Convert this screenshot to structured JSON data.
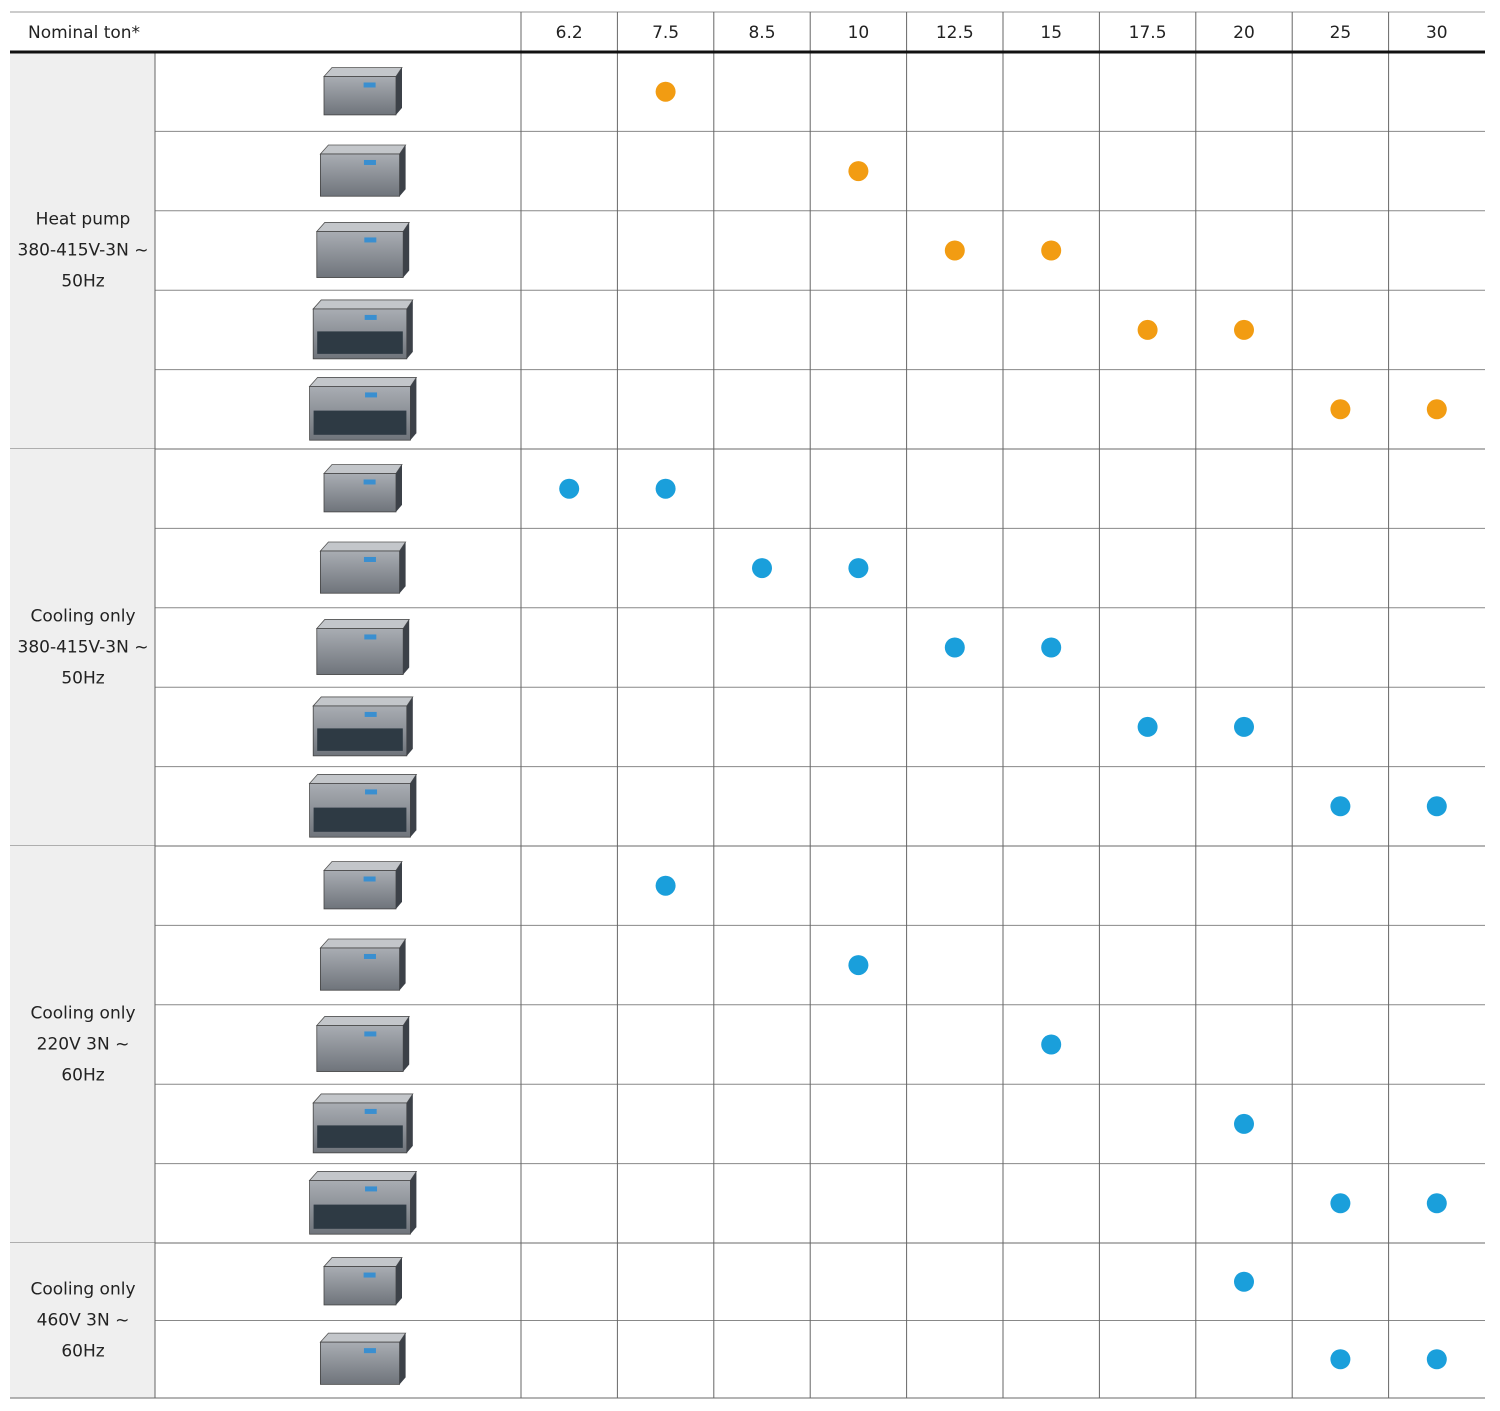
{
  "header": {
    "label": "Nominal ton*",
    "columns": [
      6.2,
      7.5,
      8.5,
      10,
      12.5,
      15,
      17.5,
      20,
      25,
      30
    ]
  },
  "groups": [
    {
      "label_lines": [
        "Heat pump",
        "380-415V-3N ~",
        "50Hz"
      ],
      "dot_color": "#f29c12",
      "rows": [
        [
          false,
          true,
          false,
          false,
          false,
          false,
          false,
          false,
          false,
          false
        ],
        [
          false,
          false,
          false,
          true,
          false,
          false,
          false,
          false,
          false,
          false
        ],
        [
          false,
          false,
          false,
          false,
          true,
          true,
          false,
          false,
          false,
          false
        ],
        [
          false,
          false,
          false,
          false,
          false,
          false,
          true,
          true,
          false,
          false
        ],
        [
          false,
          false,
          false,
          false,
          false,
          false,
          false,
          false,
          true,
          true
        ]
      ]
    },
    {
      "label_lines": [
        "Cooling only",
        "380-415V-3N ~",
        "50Hz"
      ],
      "dot_color": "#1a9fdb",
      "rows": [
        [
          true,
          true,
          false,
          false,
          false,
          false,
          false,
          false,
          false,
          false
        ],
        [
          false,
          false,
          true,
          true,
          false,
          false,
          false,
          false,
          false,
          false
        ],
        [
          false,
          false,
          false,
          false,
          true,
          true,
          false,
          false,
          false,
          false
        ],
        [
          false,
          false,
          false,
          false,
          false,
          false,
          true,
          true,
          false,
          false
        ],
        [
          false,
          false,
          false,
          false,
          false,
          false,
          false,
          false,
          true,
          true
        ]
      ]
    },
    {
      "label_lines": [
        "Cooling only",
        "220V 3N ~",
        "60Hz"
      ],
      "dot_color": "#1a9fdb",
      "rows": [
        [
          false,
          true,
          false,
          false,
          false,
          false,
          false,
          false,
          false,
          false
        ],
        [
          false,
          false,
          false,
          true,
          false,
          false,
          false,
          false,
          false,
          false
        ],
        [
          false,
          false,
          false,
          false,
          false,
          true,
          false,
          false,
          false,
          false
        ],
        [
          false,
          false,
          false,
          false,
          false,
          false,
          false,
          true,
          false,
          false
        ],
        [
          false,
          false,
          false,
          false,
          false,
          false,
          false,
          false,
          true,
          true
        ]
      ]
    },
    {
      "label_lines": [
        "Cooling only",
        "460V 3N ~",
        "60Hz"
      ],
      "dot_color": "#1a9fdb",
      "rows": [
        [
          false,
          false,
          false,
          false,
          false,
          false,
          false,
          true,
          false,
          false
        ],
        [
          false,
          false,
          false,
          false,
          false,
          false,
          false,
          false,
          true,
          true
        ]
      ]
    }
  ]
}
